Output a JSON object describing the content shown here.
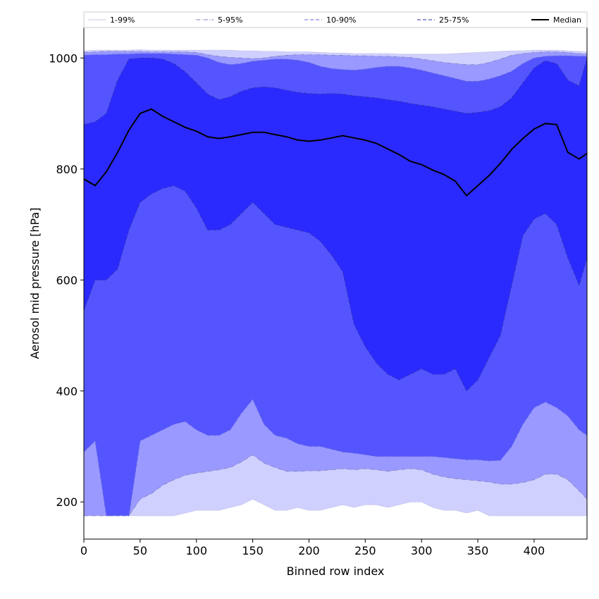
{
  "chart_data": {
    "type": "area",
    "title": "",
    "xlabel": "Binned row index",
    "ylabel": "Aerosol mid pressure [hPa]",
    "xlim": [
      0,
      447
    ],
    "ylim": [
      133,
      1055
    ],
    "xticks": [
      0,
      50,
      100,
      150,
      200,
      250,
      300,
      350,
      400
    ],
    "yticks": [
      200,
      400,
      600,
      800,
      1000
    ],
    "legend_position": "top-outside",
    "grid": false,
    "x": [
      0,
      10,
      20,
      30,
      40,
      50,
      60,
      70,
      80,
      90,
      100,
      110,
      120,
      130,
      140,
      150,
      160,
      170,
      180,
      190,
      200,
      210,
      220,
      230,
      240,
      250,
      260,
      270,
      280,
      290,
      300,
      310,
      320,
      330,
      340,
      350,
      360,
      370,
      380,
      390,
      400,
      410,
      420,
      430,
      440,
      447
    ],
    "bands": [
      {
        "name": "1-99%",
        "color": "#d0d0ff",
        "line_color": "#c8c8ee",
        "line_style": "solid",
        "lower": [
          175,
          175,
          175,
          175,
          175,
          175,
          175,
          175,
          175,
          180,
          185,
          185,
          185,
          190,
          195,
          205,
          195,
          185,
          185,
          190,
          185,
          185,
          190,
          195,
          190,
          195,
          195,
          190,
          195,
          200,
          200,
          190,
          185,
          185,
          180,
          185,
          175,
          175,
          175,
          175,
          175,
          175,
          175,
          175,
          175,
          175
        ],
        "upper": [
          1013,
          1014,
          1014,
          1014,
          1014,
          1015,
          1014,
          1014,
          1014,
          1014,
          1014,
          1014,
          1014,
          1014,
          1013,
          1013,
          1012,
          1012,
          1011,
          1011,
          1011,
          1010,
          1009,
          1009,
          1008,
          1008,
          1008,
          1008,
          1007,
          1007,
          1007,
          1007,
          1007,
          1008,
          1009,
          1010,
          1011,
          1012,
          1013,
          1013,
          1014,
          1014,
          1014,
          1013,
          1012,
          1011
        ]
      },
      {
        "name": "5-95%",
        "color": "#9999ff",
        "line_color": "#8080c0",
        "line_style": "dashdot",
        "lower": [
          175,
          175,
          175,
          175,
          175,
          205,
          215,
          230,
          240,
          248,
          252,
          255,
          258,
          262,
          272,
          285,
          270,
          262,
          255,
          255,
          256,
          256,
          258,
          260,
          258,
          260,
          258,
          255,
          258,
          260,
          258,
          250,
          245,
          242,
          240,
          238,
          236,
          232,
          232,
          235,
          240,
          250,
          250,
          240,
          220,
          205
        ],
        "upper": [
          1010,
          1011,
          1012,
          1012,
          1012,
          1012,
          1011,
          1011,
          1011,
          1011,
          1010,
          1006,
          1003,
          1001,
          1000,
          999,
          1000,
          1003,
          1005,
          1006,
          1006,
          1006,
          1005,
          1005,
          1004,
          1004,
          1003,
          1003,
          1002,
          1001,
          998,
          995,
          992,
          990,
          988,
          988,
          992,
          998,
          1005,
          1008,
          1010,
          1011,
          1011,
          1010,
          1008,
          1007
        ]
      },
      {
        "name": "10-90%",
        "color": "#5555ff",
        "line_color": "#6666dd",
        "line_style": "dashed",
        "lower": [
          290,
          310,
          175,
          175,
          175,
          310,
          320,
          330,
          340,
          345,
          330,
          320,
          320,
          330,
          360,
          385,
          340,
          320,
          315,
          305,
          300,
          300,
          295,
          290,
          288,
          285,
          282,
          282,
          282,
          282,
          282,
          282,
          280,
          278,
          276,
          276,
          274,
          275,
          300,
          340,
          370,
          380,
          370,
          355,
          330,
          320
        ],
        "upper": [
          1005,
          1006,
          1006,
          1007,
          1007,
          1008,
          1008,
          1008,
          1007,
          1006,
          1005,
          1000,
          992,
          988,
          990,
          994,
          996,
          998,
          998,
          996,
          992,
          985,
          981,
          979,
          978,
          980,
          983,
          985,
          985,
          982,
          978,
          973,
          968,
          963,
          958,
          958,
          962,
          968,
          976,
          990,
          1000,
          1003,
          1004,
          1004,
          1003,
          1003
        ]
      },
      {
        "name": "25-75%",
        "color": "#2a2aff",
        "line_color": "#3333aa",
        "line_style": "dashed",
        "lower": [
          545,
          600,
          600,
          620,
          690,
          740,
          755,
          765,
          770,
          760,
          730,
          690,
          690,
          700,
          720,
          740,
          720,
          700,
          695,
          690,
          685,
          670,
          645,
          615,
          520,
          480,
          450,
          430,
          420,
          430,
          440,
          430,
          430,
          440,
          400,
          420,
          460,
          500,
          590,
          680,
          710,
          720,
          700,
          640,
          590,
          640
        ],
        "upper": [
          880,
          885,
          900,
          960,
          998,
          1000,
          1000,
          998,
          990,
          975,
          955,
          935,
          925,
          930,
          940,
          946,
          948,
          946,
          942,
          938,
          936,
          935,
          936,
          935,
          932,
          930,
          928,
          925,
          922,
          918,
          915,
          912,
          908,
          904,
          900,
          902,
          905,
          912,
          928,
          955,
          982,
          995,
          990,
          960,
          950,
          1000
        ]
      }
    ],
    "series": [
      {
        "name": "Median",
        "color": "#000000",
        "values": [
          782,
          770,
          795,
          830,
          870,
          900,
          908,
          895,
          885,
          875,
          868,
          858,
          855,
          858,
          862,
          866,
          866,
          862,
          858,
          852,
          850,
          852,
          856,
          860,
          856,
          852,
          846,
          836,
          826,
          814,
          808,
          798,
          790,
          778,
          752,
          770,
          788,
          810,
          835,
          855,
          872,
          882,
          880,
          830,
          818,
          828
        ]
      }
    ],
    "legend": [
      "1-99%",
      "5-95%",
      "10-90%",
      "25-75%",
      "Median"
    ]
  }
}
